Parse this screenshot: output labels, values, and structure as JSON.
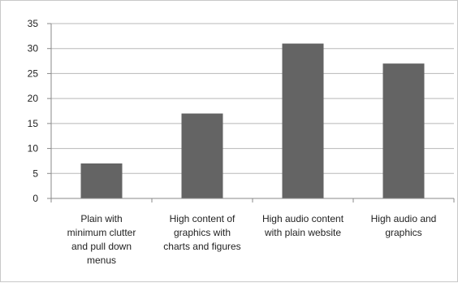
{
  "chart_data": {
    "type": "bar",
    "title": "",
    "xlabel": "",
    "ylabel": "",
    "categories": [
      "Plain with minimum clutter and pull down menus",
      "High content of graphics with charts and figures",
      "High audio content with plain website",
      "High audio and graphics"
    ],
    "category_lines": [
      [
        "Plain with",
        "minimum clutter",
        "and pull down",
        "menus"
      ],
      [
        "High content of",
        "graphics with",
        "charts and figures"
      ],
      [
        "High audio content",
        "with plain website"
      ],
      [
        "High audio and",
        "graphics"
      ]
    ],
    "values": [
      7,
      17,
      31,
      27
    ],
    "ylim": [
      0,
      35
    ],
    "yticks": [
      "0",
      "5",
      "10",
      "15",
      "20",
      "25",
      "30",
      "35"
    ],
    "grid": true,
    "legend": "none",
    "bar_color": "#646464",
    "grid_color": "#b8b8b8"
  }
}
